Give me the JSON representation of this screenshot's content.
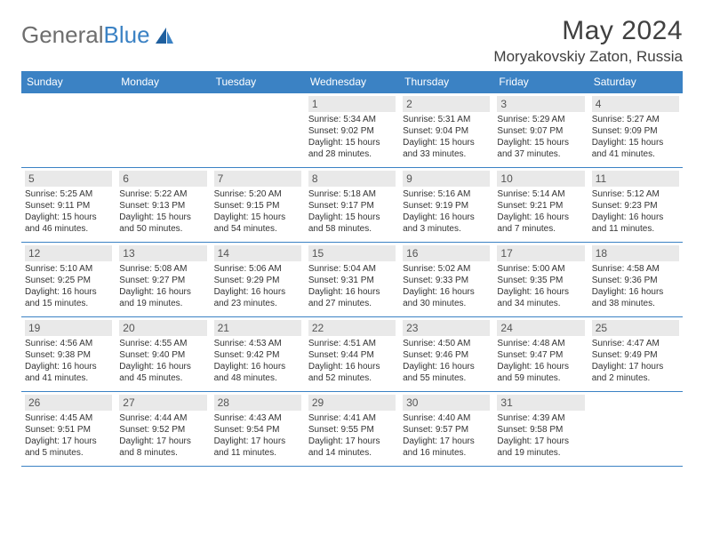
{
  "logo": {
    "text1": "General",
    "text2": "Blue"
  },
  "title": "May 2024",
  "location": "Moryakovskiy Zaton, Russia",
  "weekdays": [
    "Sunday",
    "Monday",
    "Tuesday",
    "Wednesday",
    "Thursday",
    "Friday",
    "Saturday"
  ],
  "colors": {
    "accent": "#3b82c4",
    "daynum_bg": "#e9e9e9",
    "text": "#333333",
    "header_text": "#404040"
  },
  "weeks": [
    [
      null,
      null,
      null,
      {
        "n": "1",
        "sr": "5:34 AM",
        "ss": "9:02 PM",
        "dl": "15 hours and 28 minutes."
      },
      {
        "n": "2",
        "sr": "5:31 AM",
        "ss": "9:04 PM",
        "dl": "15 hours and 33 minutes."
      },
      {
        "n": "3",
        "sr": "5:29 AM",
        "ss": "9:07 PM",
        "dl": "15 hours and 37 minutes."
      },
      {
        "n": "4",
        "sr": "5:27 AM",
        "ss": "9:09 PM",
        "dl": "15 hours and 41 minutes."
      }
    ],
    [
      {
        "n": "5",
        "sr": "5:25 AM",
        "ss": "9:11 PM",
        "dl": "15 hours and 46 minutes."
      },
      {
        "n": "6",
        "sr": "5:22 AM",
        "ss": "9:13 PM",
        "dl": "15 hours and 50 minutes."
      },
      {
        "n": "7",
        "sr": "5:20 AM",
        "ss": "9:15 PM",
        "dl": "15 hours and 54 minutes."
      },
      {
        "n": "8",
        "sr": "5:18 AM",
        "ss": "9:17 PM",
        "dl": "15 hours and 58 minutes."
      },
      {
        "n": "9",
        "sr": "5:16 AM",
        "ss": "9:19 PM",
        "dl": "16 hours and 3 minutes."
      },
      {
        "n": "10",
        "sr": "5:14 AM",
        "ss": "9:21 PM",
        "dl": "16 hours and 7 minutes."
      },
      {
        "n": "11",
        "sr": "5:12 AM",
        "ss": "9:23 PM",
        "dl": "16 hours and 11 minutes."
      }
    ],
    [
      {
        "n": "12",
        "sr": "5:10 AM",
        "ss": "9:25 PM",
        "dl": "16 hours and 15 minutes."
      },
      {
        "n": "13",
        "sr": "5:08 AM",
        "ss": "9:27 PM",
        "dl": "16 hours and 19 minutes."
      },
      {
        "n": "14",
        "sr": "5:06 AM",
        "ss": "9:29 PM",
        "dl": "16 hours and 23 minutes."
      },
      {
        "n": "15",
        "sr": "5:04 AM",
        "ss": "9:31 PM",
        "dl": "16 hours and 27 minutes."
      },
      {
        "n": "16",
        "sr": "5:02 AM",
        "ss": "9:33 PM",
        "dl": "16 hours and 30 minutes."
      },
      {
        "n": "17",
        "sr": "5:00 AM",
        "ss": "9:35 PM",
        "dl": "16 hours and 34 minutes."
      },
      {
        "n": "18",
        "sr": "4:58 AM",
        "ss": "9:36 PM",
        "dl": "16 hours and 38 minutes."
      }
    ],
    [
      {
        "n": "19",
        "sr": "4:56 AM",
        "ss": "9:38 PM",
        "dl": "16 hours and 41 minutes."
      },
      {
        "n": "20",
        "sr": "4:55 AM",
        "ss": "9:40 PM",
        "dl": "16 hours and 45 minutes."
      },
      {
        "n": "21",
        "sr": "4:53 AM",
        "ss": "9:42 PM",
        "dl": "16 hours and 48 minutes."
      },
      {
        "n": "22",
        "sr": "4:51 AM",
        "ss": "9:44 PM",
        "dl": "16 hours and 52 minutes."
      },
      {
        "n": "23",
        "sr": "4:50 AM",
        "ss": "9:46 PM",
        "dl": "16 hours and 55 minutes."
      },
      {
        "n": "24",
        "sr": "4:48 AM",
        "ss": "9:47 PM",
        "dl": "16 hours and 59 minutes."
      },
      {
        "n": "25",
        "sr": "4:47 AM",
        "ss": "9:49 PM",
        "dl": "17 hours and 2 minutes."
      }
    ],
    [
      {
        "n": "26",
        "sr": "4:45 AM",
        "ss": "9:51 PM",
        "dl": "17 hours and 5 minutes."
      },
      {
        "n": "27",
        "sr": "4:44 AM",
        "ss": "9:52 PM",
        "dl": "17 hours and 8 minutes."
      },
      {
        "n": "28",
        "sr": "4:43 AM",
        "ss": "9:54 PM",
        "dl": "17 hours and 11 minutes."
      },
      {
        "n": "29",
        "sr": "4:41 AM",
        "ss": "9:55 PM",
        "dl": "17 hours and 14 minutes."
      },
      {
        "n": "30",
        "sr": "4:40 AM",
        "ss": "9:57 PM",
        "dl": "17 hours and 16 minutes."
      },
      {
        "n": "31",
        "sr": "4:39 AM",
        "ss": "9:58 PM",
        "dl": "17 hours and 19 minutes."
      },
      null
    ]
  ],
  "labels": {
    "sunrise": "Sunrise: ",
    "sunset": "Sunset: ",
    "daylight": "Daylight: "
  }
}
